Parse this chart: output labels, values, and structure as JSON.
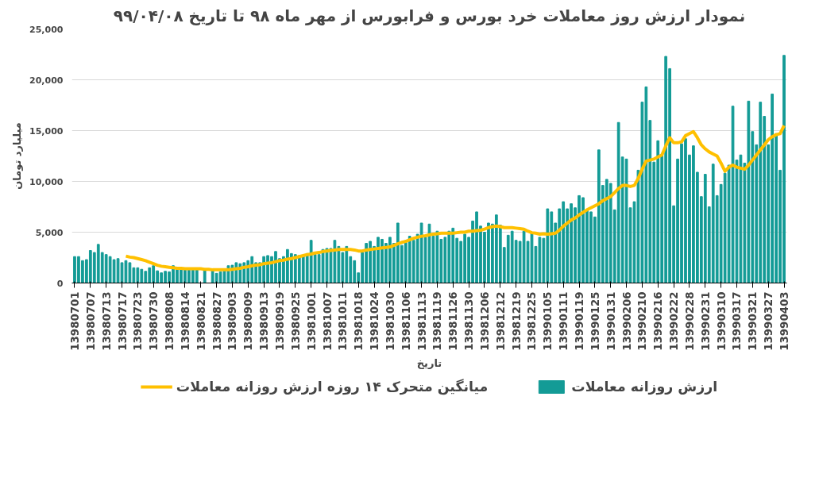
{
  "chart_data": {
    "type": "bar",
    "title": "نمودار ارزش روز معاملات خرد بورس و فرابورس از مهر ماه ۹۸ تا تاریخ ۹۹/۰۴/۰۸",
    "xlabel": "تاریخ",
    "ylabel": "میلیارد تومان",
    "categories": [
      "13980701",
      null,
      null,
      null,
      "13980707",
      null,
      null,
      null,
      "13980713",
      null,
      null,
      null,
      "13980717",
      null,
      null,
      null,
      "13980723",
      null,
      null,
      null,
      "13980730",
      null,
      null,
      null,
      "13980808",
      null,
      null,
      null,
      "13980814",
      null,
      null,
      null,
      "13980821",
      null,
      null,
      null,
      "13980827",
      null,
      null,
      null,
      "13980903",
      null,
      null,
      null,
      "13980909",
      null,
      null,
      null,
      "13980913",
      null,
      null,
      null,
      "13980919",
      null,
      null,
      null,
      "13980925",
      null,
      null,
      null,
      "13981001",
      null,
      null,
      null,
      "13981007",
      null,
      null,
      null,
      "13981011",
      null,
      null,
      null,
      "13981018",
      null,
      null,
      null,
      "13981024",
      null,
      null,
      null,
      "13981030",
      null,
      null,
      null,
      "13981106",
      null,
      null,
      null,
      "13981113",
      null,
      null,
      null,
      "13981119",
      null,
      null,
      null,
      "13981126",
      null,
      null,
      null,
      "13981130",
      null,
      null,
      null,
      "13981206",
      null,
      null,
      null,
      "13981212",
      null,
      null,
      null,
      "13981219",
      null,
      null,
      null,
      "13981225",
      null,
      null,
      null,
      "13990105",
      null,
      null,
      null,
      "13990111",
      null,
      null,
      null,
      "13990119",
      null,
      null,
      null,
      "13990125",
      null,
      null,
      null,
      "13990131",
      null,
      null,
      null,
      "13990206",
      null,
      null,
      null,
      "13990210",
      null,
      null,
      null,
      "13990216",
      null,
      null,
      null,
      "13990222",
      null,
      null,
      null,
      "13990228",
      null,
      null,
      null,
      "13990231",
      null,
      null,
      null,
      "13990310",
      null,
      null,
      null,
      "13990317",
      null,
      null,
      null,
      "13990321",
      null,
      null,
      null,
      "13990327",
      null,
      null,
      null,
      "13990403"
    ],
    "series": [
      {
        "name": "ارزش روزانه معاملات",
        "color": "#139b96",
        "values": [
          2600,
          2600,
          2200,
          2300,
          3200,
          3000,
          3800,
          3000,
          2800,
          2600,
          2300,
          2400,
          2000,
          2200,
          2000,
          1500,
          1500,
          1350,
          1150,
          1500,
          1700,
          1200,
          1000,
          1150,
          1100,
          1700,
          1400,
          1400,
          1400,
          1400,
          1400,
          1400,
          null,
          1400,
          null,
          1350,
          950,
          1100,
          1200,
          1700,
          1750,
          2000,
          1900,
          2000,
          2200,
          2600,
          2000,
          2000,
          2600,
          2700,
          2600,
          3100,
          2400,
          2600,
          3300,
          2900,
          2800,
          2700,
          2700,
          2900,
          4200,
          2800,
          2800,
          3300,
          3400,
          3400,
          4200,
          3600,
          3000,
          3600,
          2600,
          2200,
          1000,
          3000,
          3900,
          4100,
          3600,
          4500,
          4300,
          3900,
          4500,
          3900,
          5900,
          3700,
          4000,
          4600,
          4200,
          4800,
          5900,
          4500,
          5800,
          4600,
          5100,
          4300,
          4500,
          5100,
          5400,
          4400,
          4100,
          4800,
          4500,
          6100,
          7000,
          5600,
          5000,
          5900,
          5800,
          6700,
          5700,
          3500,
          4700,
          5100,
          4200,
          4100,
          5100,
          4100,
          4900,
          3600,
          4500,
          4400,
          7300,
          7000,
          5900,
          7300,
          8000,
          7300,
          7800,
          7400,
          8600,
          8400,
          7200,
          7000,
          6500,
          13100,
          9600,
          10200,
          9800,
          7200,
          15800,
          12400,
          12200,
          7400,
          8000,
          11100,
          17800,
          19300,
          16000,
          11900,
          14000,
          12600,
          22300,
          21100,
          7600,
          12200,
          13700,
          14200,
          12600,
          13500,
          10900,
          8500,
          10700,
          7500,
          11700,
          8600,
          9700,
          10800,
          11600,
          17400,
          12100,
          12600,
          11800,
          17900,
          14900,
          13600,
          17800,
          16400,
          13600,
          18600,
          14700,
          11100,
          22400
        ]
      },
      {
        "name": "میانگین متحرک ۱۴ روزه ارزش روزانه معاملات",
        "type": "line",
        "color": "#ffc000",
        "values": [
          null,
          null,
          null,
          null,
          null,
          null,
          null,
          null,
          null,
          null,
          null,
          null,
          null,
          2650,
          2550,
          2500,
          2400,
          2300,
          2200,
          2050,
          1900,
          1750,
          1650,
          1600,
          1550,
          1500,
          1450,
          1450,
          1400,
          1400,
          1400,
          1400,
          1400,
          1350,
          1350,
          1300,
          1300,
          1300,
          1300,
          1300,
          1350,
          1400,
          1450,
          1550,
          1600,
          1700,
          1750,
          1800,
          1900,
          1950,
          2000,
          2100,
          2200,
          2250,
          2350,
          2400,
          2500,
          2600,
          2700,
          2800,
          2850,
          2950,
          3000,
          3100,
          3150,
          3200,
          3250,
          3300,
          3300,
          3300,
          3300,
          3250,
          3150,
          3150,
          3250,
          3300,
          3350,
          3400,
          3450,
          3500,
          3550,
          3700,
          3850,
          4000,
          4100,
          4250,
          4400,
          4500,
          4600,
          4650,
          4750,
          4800,
          4850,
          4900,
          4900,
          4900,
          4900,
          4950,
          5000,
          5000,
          5100,
          5100,
          5150,
          5200,
          5300,
          5450,
          5550,
          5600,
          5550,
          5450,
          5450,
          5450,
          5400,
          5350,
          5300,
          5100,
          4950,
          4900,
          4800,
          4850,
          4800,
          4850,
          4900,
          5200,
          5600,
          5900,
          6200,
          6400,
          6700,
          6950,
          7200,
          7400,
          7600,
          7800,
          8100,
          8300,
          8500,
          8900,
          9300,
          9600,
          9600,
          9500,
          9600,
          10300,
          11200,
          12000,
          12100,
          12200,
          12400,
          12600,
          13500,
          14300,
          13800,
          13800,
          13900,
          14500,
          14700,
          14900,
          14300,
          13600,
          13200,
          12900,
          12700,
          12500,
          11800,
          11000,
          11400,
          11600,
          11400,
          11300,
          11200,
          11600,
          12100,
          12600,
          13100,
          13600,
          14100,
          14400,
          14600,
          14700,
          15500
        ]
      }
    ],
    "ylim": [
      0,
      25000
    ],
    "yticks": [
      0,
      {
        "value": 5000,
        "label": "5,000"
      },
      {
        "value": 10000,
        "label": "10,000"
      },
      {
        "value": 15000,
        "label": "15,000"
      },
      {
        "value": 20000,
        "label": "20,000"
      },
      {
        "value": 25000,
        "label": "25,000"
      }
    ],
    "grid": "y",
    "legend": "bottom"
  }
}
